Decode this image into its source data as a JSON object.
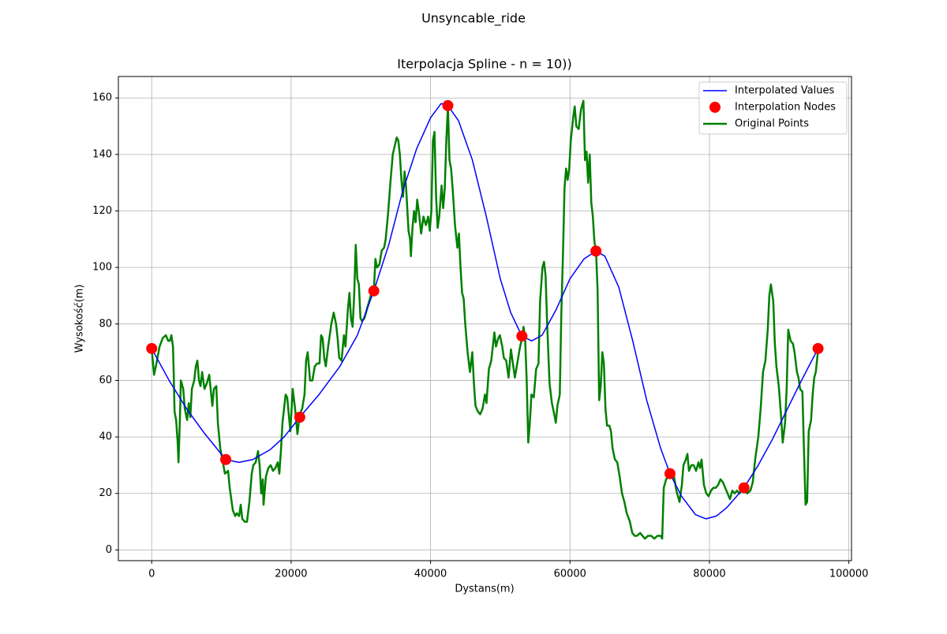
{
  "chart_data": {
    "type": "line",
    "suptitle": "Unsyncable_ride",
    "title": "Iterpolacja Spline - n = 10))",
    "xlabel": "Dystans(m)",
    "ylabel": "Wysokość(m)",
    "xlim": [
      -4780,
      100380
    ],
    "ylim": [
      -3.8,
      167.6
    ],
    "xticks": [
      0,
      20000,
      40000,
      60000,
      80000,
      100000
    ],
    "yticks": [
      0,
      20,
      40,
      60,
      80,
      100,
      120,
      140,
      160
    ],
    "grid": true,
    "legend": "upper right",
    "series": [
      {
        "name": "Interpolated Values",
        "type": "line",
        "color": "#0000ff",
        "width": 1.5,
        "x": [
          0,
          2500,
          5000,
          7500,
          10620,
          12500,
          14500,
          17000,
          19000,
          21240,
          24000,
          27000,
          29500,
          31860,
          34000,
          36000,
          38000,
          40000,
          41500,
          42480,
          44000,
          46000,
          48000,
          50000,
          51500,
          53100,
          54500,
          56000,
          58000,
          60000,
          62000,
          63720,
          65000,
          67000,
          69000,
          71000,
          73000,
          74340,
          76000,
          78000,
          79500,
          81000,
          82500,
          84960,
          87000,
          89000,
          91000,
          93000,
          95580
        ],
        "values": [
          71.3,
          60,
          50,
          41.5,
          32,
          31,
          32,
          35.5,
          40,
          47,
          55,
          65,
          76,
          91.7,
          108,
          127,
          142,
          153,
          158,
          157.3,
          152,
          138,
          118,
          96,
          84,
          75.7,
          74,
          76,
          85,
          96,
          103,
          105.8,
          104,
          93,
          74,
          53,
          36,
          27,
          19,
          12.5,
          11,
          12,
          15,
          22,
          30,
          39,
          49,
          59,
          71.3
        ]
      },
      {
        "name": "Interpolation Nodes",
        "type": "scatter",
        "color": "#ff0000",
        "x": [
          0,
          10620,
          21240,
          31860,
          42480,
          53100,
          63720,
          74340,
          84960,
          95580
        ],
        "values": [
          71.3,
          32,
          47,
          91.7,
          157.3,
          75.7,
          105.8,
          27,
          22,
          71.3
        ]
      },
      {
        "name": "Original Points",
        "type": "line",
        "color": "#008000",
        "width": 2.5,
        "x": [
          0,
          339,
          678,
          1130,
          1582,
          2034,
          2373,
          2599,
          2825,
          3051,
          3164,
          3277,
          3503,
          3729,
          3842,
          4068,
          4181,
          4520,
          4746,
          5085,
          5311,
          5537,
          5763,
          6102,
          6328,
          6554,
          6780,
          7006,
          7232,
          7571,
          7910,
          8249,
          8701,
          8927,
          9266,
          9492,
          9831,
          10057,
          10283,
          10509,
          10961,
          11187,
          11639,
          11978,
          12204,
          12543,
          12769,
          12995,
          13334,
          13673,
          14012,
          14351,
          14577,
          14916,
          15255,
          15481,
          15707,
          15933,
          16046,
          16385,
          16724,
          17063,
          17402,
          17741,
          18080,
          18306,
          18532,
          18758,
          19210,
          19436,
          19888,
          20227,
          20566,
          20905,
          21244,
          21583,
          21922,
          22148,
          22374,
          22713,
          23052,
          23391,
          23730,
          24069,
          24295,
          24521,
          24747,
          24973,
          25312,
          25764,
          26103,
          26442,
          26668,
          26894,
          27233,
          27572,
          27798,
          28137,
          28363,
          28589,
          28815,
          29041,
          29267,
          29493,
          29719,
          29945,
          30171,
          30510,
          30849,
          31188,
          31527,
          31866,
          32092,
          32318,
          32657,
          32996,
          33335,
          33561,
          33900,
          34239,
          34578,
          35143,
          35369,
          35595,
          35821,
          36047,
          36273,
          36499,
          36838,
          37064,
          37177,
          37403,
          37629,
          37855,
          38081,
          38307,
          38646,
          38985,
          39324,
          39663,
          39889,
          40115,
          40341,
          40567,
          40793,
          41019,
          41245,
          41584,
          41810,
          42036,
          42262,
          42488,
          42714,
          42940,
          43166,
          43505,
          43844,
          44070,
          44296,
          44522,
          44748,
          44974,
          45313,
          45652,
          45991,
          46217,
          46443,
          46782,
          47121,
          47460,
          47799,
          48025,
          48364,
          48703,
          48929,
          49155,
          49381,
          49720,
          49946,
          50285,
          50511,
          50850,
          51189,
          51528,
          51867,
          52093,
          52432,
          52771,
          53110,
          53336,
          53562,
          53788,
          54014,
          54240,
          54466,
          54805,
          55144,
          55483,
          55709,
          56048,
          56274,
          56500,
          56726,
          57065,
          57404,
          57743,
          57969,
          58195,
          58534,
          58760,
          58986,
          59212,
          59438,
          59664,
          59890,
          60116,
          60455,
          60681,
          60907,
          61246,
          61585,
          61924,
          62150,
          62376,
          62602,
          62828,
          63054,
          63280,
          63506,
          63732,
          63958,
          64184,
          64410,
          64636,
          64862,
          65088,
          65314,
          65653,
          65879,
          66105,
          66444,
          66783,
          67122,
          67461,
          67800,
          68139,
          68591,
          68930,
          69269,
          69608,
          70060,
          70399,
          70738,
          71190,
          71642,
          72094,
          72546,
          72998,
          73224,
          73450,
          73789,
          74128,
          74580,
          74919,
          75258,
          75710,
          76049,
          76275,
          76614,
          76840,
          77066,
          77405,
          77744,
          78083,
          78422,
          78648,
          78874,
          79213,
          79552,
          79891,
          80230,
          80569,
          80908,
          81247,
          81586,
          81925,
          82264,
          82603,
          82942,
          83281,
          83620,
          83959,
          84298,
          84863,
          85428,
          85880,
          86219,
          86558,
          87010,
          87349,
          87688,
          88027,
          88366,
          88592,
          88818,
          89157,
          89383,
          89609,
          89948,
          90287,
          90513,
          90852,
          91078,
          91304,
          91643,
          91982,
          92208,
          92547,
          92773,
          92999,
          93338,
          93564,
          93790,
          94016,
          94242,
          94581,
          94807,
          95033,
          95259,
          95598
        ],
        "values": [
          71,
          62,
          66,
          72,
          75,
          76,
          74,
          74,
          76,
          72,
          62,
          49,
          46,
          38,
          31,
          48,
          60,
          57,
          50,
          46,
          52,
          47,
          57,
          60,
          65,
          67,
          60,
          58,
          63,
          57,
          59,
          62,
          51,
          57,
          58,
          45,
          36,
          33,
          30,
          27,
          28,
          22,
          14,
          12,
          13,
          12,
          16,
          11,
          10,
          10,
          17,
          27,
          30,
          31,
          35,
          30,
          20,
          25,
          16,
          26,
          29,
          30,
          28,
          29,
          31,
          27,
          35,
          45,
          55,
          54,
          42,
          57,
          50,
          41,
          48,
          50,
          55,
          67,
          70,
          60,
          60,
          65,
          66,
          66,
          76,
          75,
          68,
          65,
          72,
          80,
          84,
          80,
          75,
          68,
          67,
          76,
          72,
          85,
          91,
          82,
          79,
          90,
          108,
          96,
          94,
          82,
          81,
          82,
          85,
          88,
          91,
          92,
          103,
          100,
          101,
          106,
          107,
          110,
          119,
          130,
          140,
          146,
          145,
          140,
          131,
          125,
          134,
          128,
          113,
          110,
          104,
          114,
          120,
          116,
          124,
          120,
          112,
          118,
          115,
          118,
          113,
          120,
          145,
          148,
          125,
          114,
          118,
          129,
          121,
          128,
          145,
          157,
          138,
          135,
          128,
          115,
          107,
          112,
          100,
          91,
          89,
          80,
          70,
          63,
          70,
          59,
          51,
          49,
          48,
          50,
          55,
          52,
          64,
          67,
          72,
          77,
          72,
          75,
          76,
          72,
          68,
          67,
          61,
          71,
          65,
          61,
          66,
          71,
          75,
          79,
          75,
          60,
          38,
          45,
          55,
          54,
          64,
          66,
          88,
          100,
          102,
          97,
          80,
          59,
          52,
          48,
          45,
          51,
          55,
          84,
          104,
          128,
          135,
          131,
          135,
          145,
          153,
          157,
          150,
          149,
          156,
          159,
          138,
          141,
          130,
          140,
          123,
          118,
          109,
          106,
          92,
          53,
          58,
          70,
          66,
          50,
          44,
          44,
          42,
          36,
          32,
          31,
          26,
          20,
          17,
          13,
          10,
          6,
          5,
          5,
          6,
          5,
          4,
          5,
          5,
          4,
          5,
          5,
          4,
          22,
          25,
          26,
          27,
          26,
          21,
          17,
          23,
          30,
          32,
          34,
          28,
          30,
          30,
          28,
          31,
          29,
          32,
          23,
          20,
          19,
          21,
          22,
          22,
          23,
          25,
          24,
          22,
          20,
          18,
          21,
          20,
          21,
          20,
          22,
          20,
          21,
          24,
          32,
          40,
          50,
          63,
          67,
          78,
          90,
          94,
          88,
          73,
          65,
          58,
          47,
          38,
          45,
          57,
          78,
          74,
          73,
          70,
          63,
          61,
          57,
          56,
          35,
          16,
          17,
          42,
          46,
          55,
          61,
          63,
          71
        ]
      }
    ]
  }
}
